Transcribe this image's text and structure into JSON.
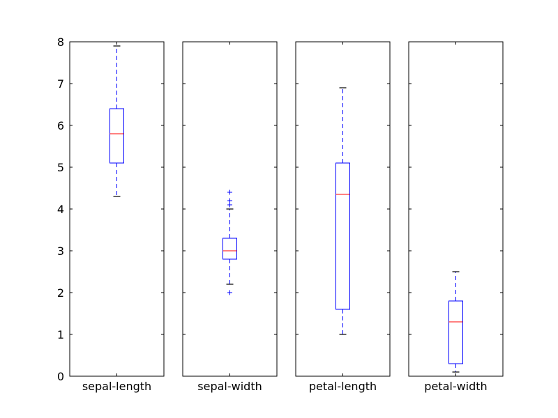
{
  "chart_data": {
    "type": "box",
    "ylim": [
      0,
      8
    ],
    "yticks": [
      0,
      1,
      2,
      3,
      4,
      5,
      6,
      7,
      8
    ],
    "shared_y": true,
    "grid": false,
    "colors": {
      "box": "#0000ff",
      "median": "#ff0000",
      "caps": "#000000",
      "axes": "#000000"
    },
    "panels": [
      {
        "label": "sepal-length",
        "whisker_low": 4.3,
        "q1": 5.1,
        "median": 5.8,
        "q3": 6.4,
        "whisker_high": 7.9,
        "outliers": []
      },
      {
        "label": "sepal-width",
        "whisker_low": 2.2,
        "q1": 2.8,
        "median": 3.0,
        "q3": 3.3,
        "whisker_high": 4.0,
        "outliers": [
          2.0,
          4.1,
          4.2,
          4.4
        ]
      },
      {
        "label": "petal-length",
        "whisker_low": 1.0,
        "q1": 1.6,
        "median": 4.35,
        "q3": 5.1,
        "whisker_high": 6.9,
        "outliers": []
      },
      {
        "label": "petal-width",
        "whisker_low": 0.1,
        "q1": 0.3,
        "median": 1.3,
        "q3": 1.8,
        "whisker_high": 2.5,
        "outliers": []
      }
    ]
  }
}
